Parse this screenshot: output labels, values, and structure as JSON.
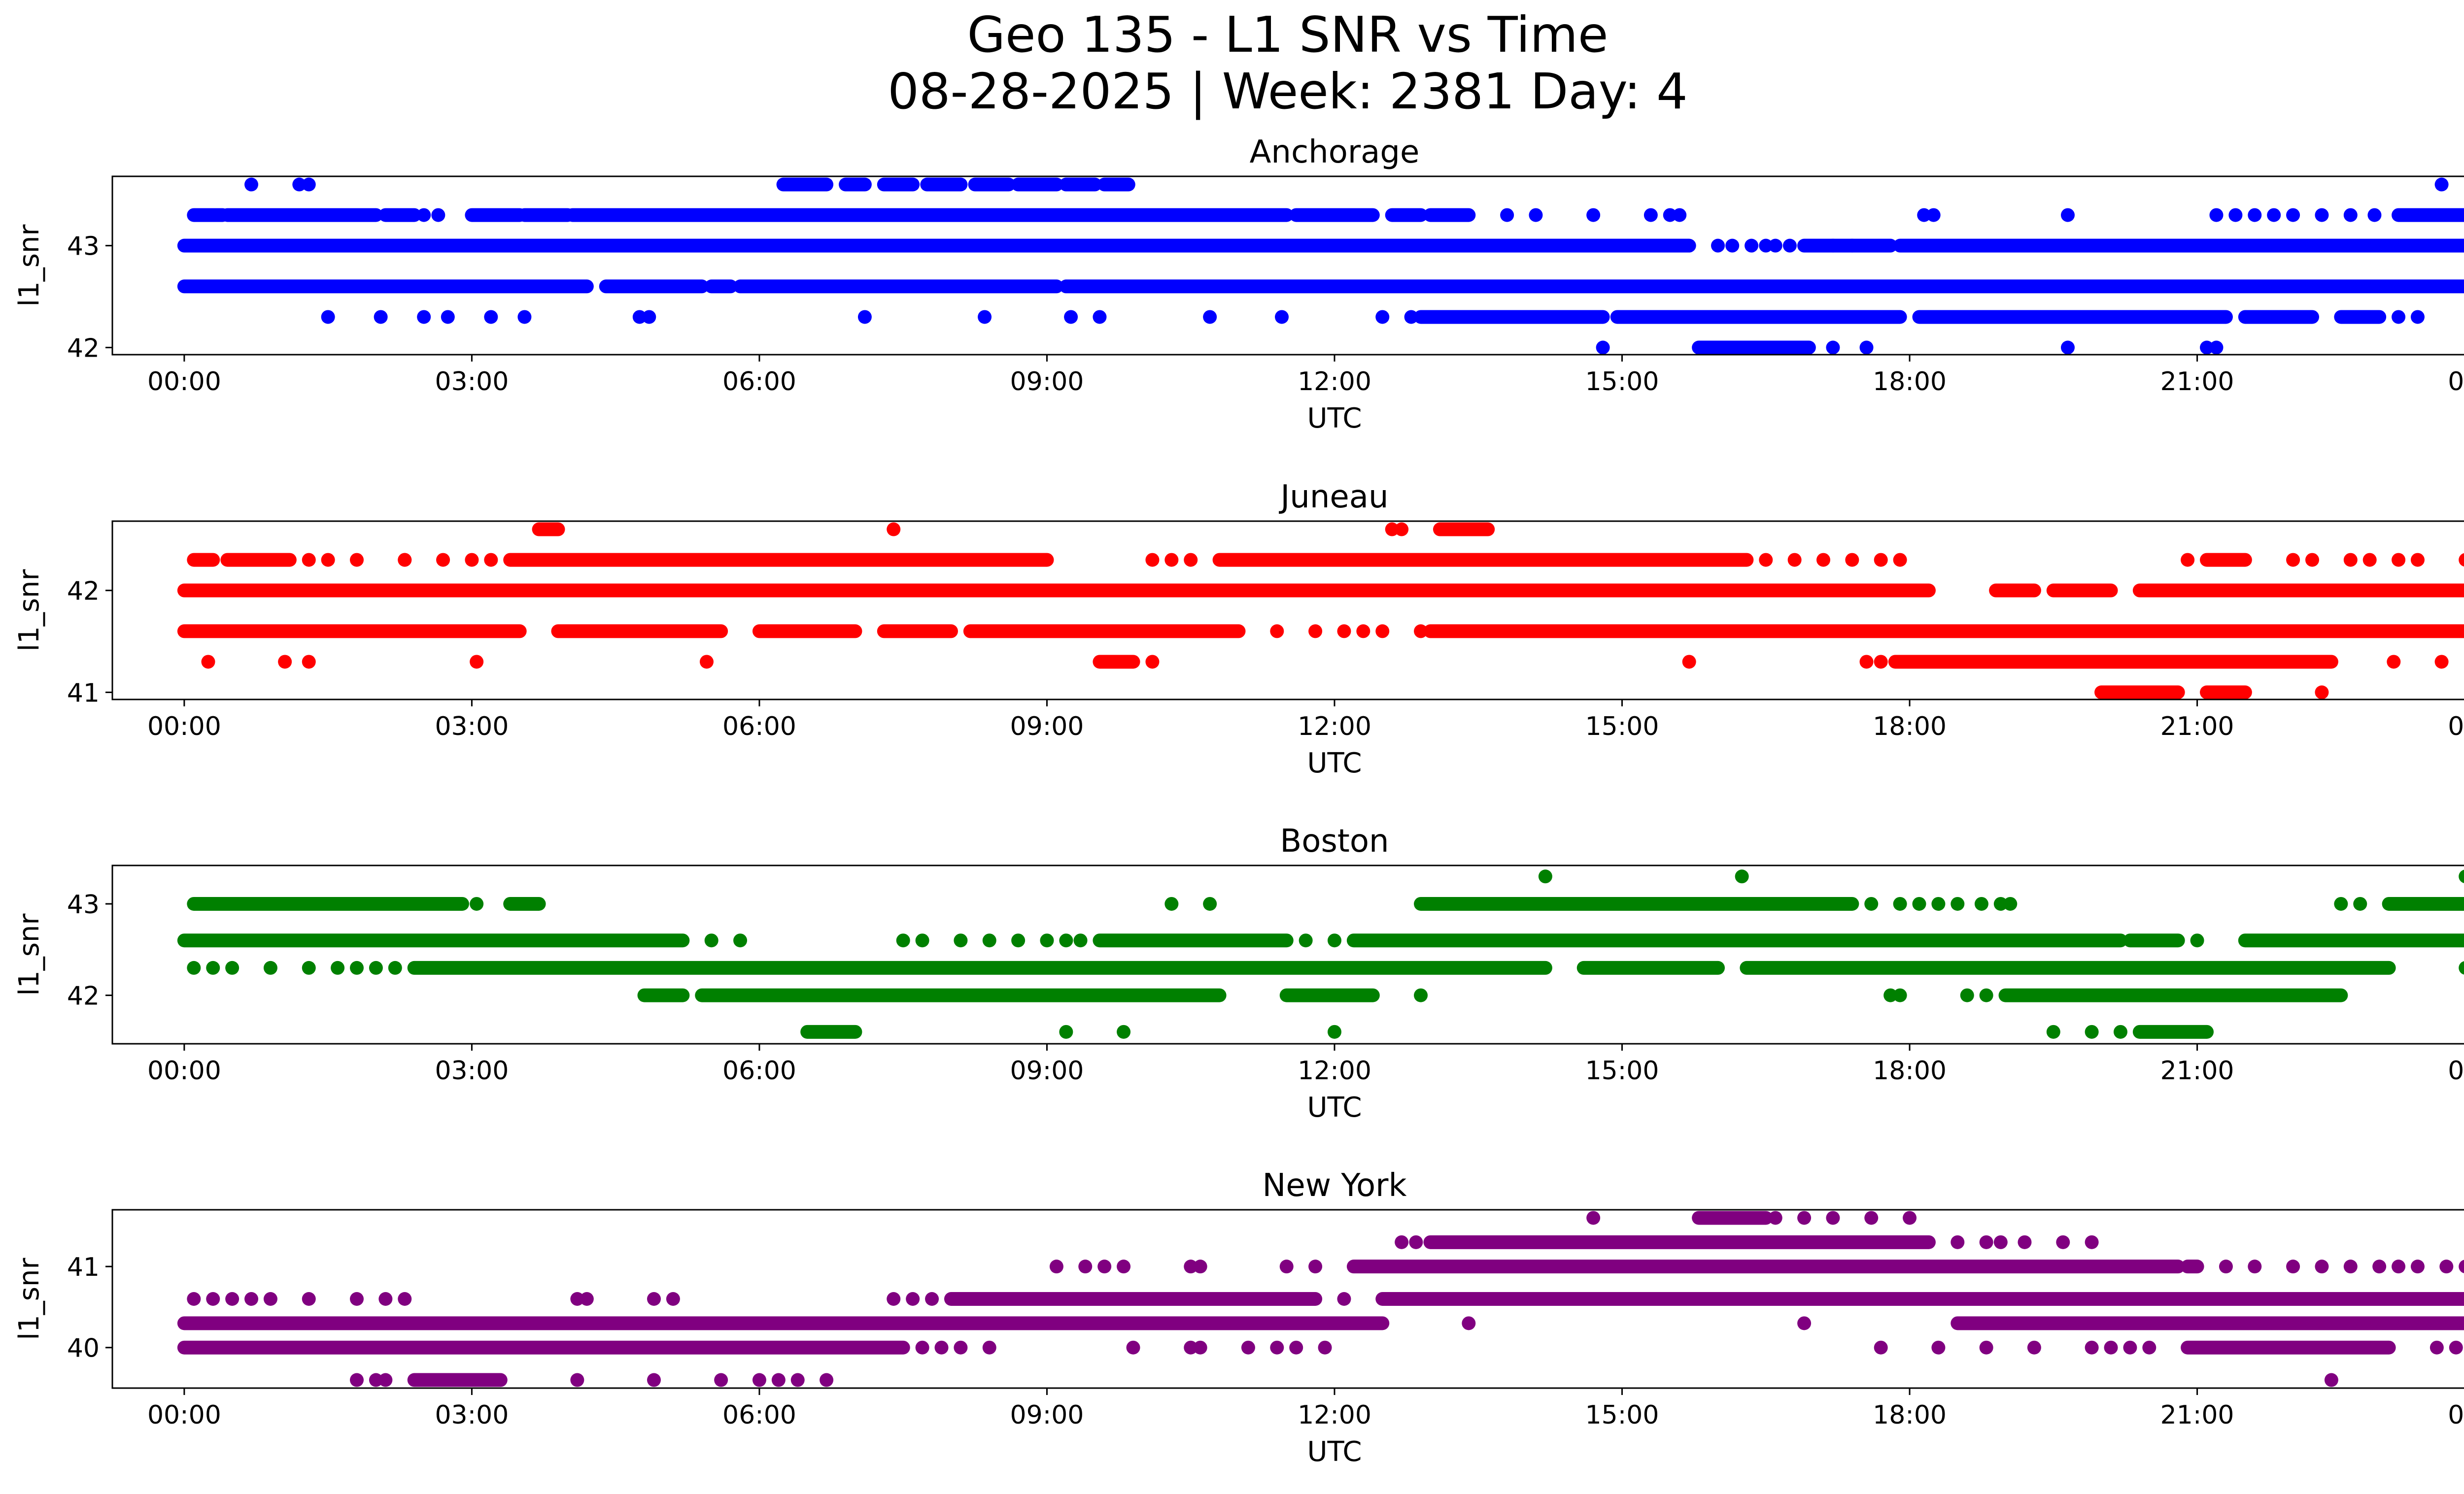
{
  "chart_data": {
    "type": "scatter",
    "title": "Geo 135 - L1 SNR vs Time",
    "subtitle": "08-28-2025 | Week: 2381 Day: 4",
    "panels": [
      {
        "name": "Anchorage",
        "color": "#0000ff",
        "xlabel": "UTC",
        "ylabel": "l1_snr",
        "xlim": [
          -0.75,
          24.75
        ],
        "ylim": [
          41.93,
          43.68
        ],
        "yticks": [
          42,
          43
        ],
        "xticks": [
          0,
          3,
          6,
          9,
          12,
          15,
          18,
          21,
          24
        ],
        "xtick_labels": [
          "00:00",
          "03:00",
          "06:00",
          "09:00",
          "12:00",
          "15:00",
          "18:00",
          "21:00",
          "00:00"
        ],
        "series": [
          {
            "y": 43.6,
            "segments": [
              [
                6.25,
                6.7
              ],
              [
                6.9,
                7.1
              ],
              [
                7.3,
                7.6
              ],
              [
                7.75,
                8.1
              ],
              [
                8.25,
                8.6
              ],
              [
                8.7,
                9.1
              ],
              [
                9.2,
                9.5
              ],
              [
                9.6,
                9.85
              ]
            ],
            "points": [
              0.7,
              1.2,
              1.3,
              23.55
            ]
          },
          {
            "y": 43.3,
            "segments": [
              [
                0.1,
                0.4
              ],
              [
                0.45,
                2.0
              ],
              [
                2.1,
                2.4
              ],
              [
                3.0,
                3.5
              ],
              [
                3.55,
                4.0
              ],
              [
                4.05,
                11.5
              ],
              [
                11.6,
                12.4
              ],
              [
                12.6,
                12.9
              ],
              [
                13.0,
                13.4
              ],
              [
                23.1,
                24.0
              ]
            ],
            "points": [
              2.5,
              2.65,
              13.8,
              14.1,
              14.7,
              15.3,
              15.5,
              15.6,
              18.15,
              18.25,
              19.65,
              21.2,
              21.4,
              21.6,
              21.8,
              22.0,
              22.3,
              22.6,
              22.85
            ]
          },
          {
            "y": 43.0,
            "segments": [
              [
                0.0,
                15.7
              ],
              [
                16.9,
                17.8
              ],
              [
                17.9,
                24.0
              ]
            ],
            "points": [
              16.0,
              16.15,
              16.35,
              16.5,
              16.6,
              16.75,
              17.2,
              17.4
            ]
          },
          {
            "y": 42.6,
            "segments": [
              [
                0.0,
                4.2
              ],
              [
                4.4,
                5.4
              ],
              [
                5.5,
                5.7
              ],
              [
                5.8,
                9.1
              ],
              [
                9.2,
                24.0
              ]
            ],
            "points": []
          },
          {
            "y": 42.3,
            "segments": [
              [
                12.9,
                14.8
              ],
              [
                14.95,
                17.9
              ],
              [
                18.1,
                21.3
              ],
              [
                21.5,
                22.2
              ],
              [
                22.5,
                22.9
              ]
            ],
            "points": [
              1.5,
              2.05,
              2.5,
              2.75,
              3.2,
              3.55,
              4.75,
              4.85,
              7.1,
              8.35,
              9.25,
              9.55,
              10.7,
              11.45,
              12.5,
              12.8,
              23.1,
              23.3
            ]
          },
          {
            "y": 42.0,
            "segments": [
              [
                15.8,
                16.95
              ]
            ],
            "points": [
              14.8,
              17.2,
              17.55,
              19.65,
              21.1,
              21.2
            ]
          }
        ]
      },
      {
        "name": "Juneau",
        "color": "#ff0000",
        "xlabel": "UTC",
        "ylabel": "l1_snr",
        "xlim": [
          -0.75,
          24.75
        ],
        "ylim": [
          40.93,
          42.68
        ],
        "yticks": [
          41,
          42
        ],
        "xticks": [
          0,
          3,
          6,
          9,
          12,
          15,
          18,
          21,
          24
        ],
        "xtick_labels": [
          "00:00",
          "03:00",
          "06:00",
          "09:00",
          "12:00",
          "15:00",
          "18:00",
          "21:00",
          "00:00"
        ],
        "series": [
          {
            "y": 42.6,
            "segments": [
              [
                3.7,
                3.9
              ],
              [
                13.1,
                13.6
              ]
            ],
            "points": [
              7.4,
              12.6,
              12.7
            ]
          },
          {
            "y": 42.3,
            "segments": [
              [
                0.1,
                0.3
              ],
              [
                0.45,
                1.1
              ],
              [
                3.4,
                9.0
              ],
              [
                10.8,
                16.3
              ],
              [
                21.1,
                21.5
              ]
            ],
            "points": [
              1.3,
              1.5,
              1.8,
              2.3,
              2.3,
              2.7,
              3.0,
              3.2,
              10.1,
              10.3,
              10.5,
              16.5,
              16.8,
              17.1,
              17.4,
              17.7,
              17.9,
              20.9,
              22.0,
              22.2,
              22.6,
              22.8,
              23.1,
              23.3,
              23.8,
              24.0
            ]
          },
          {
            "y": 42.0,
            "segments": [
              [
                0.0,
                18.2
              ],
              [
                18.9,
                19.3
              ],
              [
                19.5,
                20.1
              ],
              [
                20.4,
                24.0
              ]
            ],
            "points": []
          },
          {
            "y": 41.6,
            "segments": [
              [
                0.0,
                3.5
              ],
              [
                3.9,
                5.6
              ],
              [
                6.0,
                7.0
              ],
              [
                7.3,
                8.0
              ],
              [
                8.2,
                11.0
              ],
              [
                13.0,
                24.0
              ]
            ],
            "points": [
              11.4,
              11.8,
              12.1,
              12.3,
              12.5,
              12.9
            ]
          },
          {
            "y": 41.3,
            "segments": [
              [
                9.55,
                9.9
              ],
              [
                17.85,
                22.4
              ]
            ],
            "points": [
              0.25,
              1.05,
              1.3,
              3.05,
              5.45,
              10.1,
              15.7,
              17.55,
              17.7,
              23.05,
              23.55
            ]
          },
          {
            "y": 41.0,
            "segments": [
              [
                20.0,
                20.8
              ],
              [
                21.1,
                21.5
              ]
            ],
            "points": [
              22.3
            ]
          }
        ]
      },
      {
        "name": "Boston",
        "color": "#008000",
        "xlabel": "UTC",
        "ylabel": "l1_snr",
        "xlim": [
          -0.75,
          24.75
        ],
        "ylim": [
          41.47,
          43.42
        ],
        "yticks": [
          42,
          43
        ],
        "xticks": [
          0,
          3,
          6,
          9,
          12,
          15,
          18,
          21,
          24
        ],
        "xtick_labels": [
          "00:00",
          "03:00",
          "06:00",
          "09:00",
          "12:00",
          "15:00",
          "18:00",
          "21:00",
          "00:00"
        ],
        "series": [
          {
            "y": 43.3,
            "segments": [],
            "points": [
              14.2,
              16.25,
              23.8,
              23.9
            ]
          },
          {
            "y": 43.0,
            "segments": [
              [
                0.1,
                2.9
              ],
              [
                3.4,
                3.7
              ],
              [
                12.9,
                17.4
              ],
              [
                23.0,
                24.0
              ]
            ],
            "points": [
              3.05,
              10.3,
              10.7,
              17.6,
              17.9,
              18.1,
              18.3,
              18.5,
              18.75,
              18.95,
              19.05,
              22.5,
              22.7
            ]
          },
          {
            "y": 42.6,
            "segments": [
              [
                0.0,
                5.2
              ],
              [
                9.55,
                11.5
              ],
              [
                12.2,
                20.2
              ],
              [
                20.3,
                20.8
              ],
              [
                21.5,
                24.0
              ]
            ],
            "points": [
              5.5,
              5.8,
              7.5,
              7.7,
              8.1,
              8.4,
              8.7,
              9.0,
              9.2,
              9.35,
              11.7,
              12.0,
              21.0
            ]
          },
          {
            "y": 42.3,
            "segments": [
              [
                2.4,
                14.2
              ],
              [
                14.6,
                16.0
              ],
              [
                16.3,
                23.0
              ]
            ],
            "points": [
              0.1,
              0.3,
              0.5,
              0.9,
              1.3,
              1.6,
              1.8,
              2.0,
              2.2,
              23.8
            ]
          },
          {
            "y": 42.0,
            "segments": [
              [
                4.8,
                5.2
              ],
              [
                5.4,
                10.8
              ],
              [
                11.5,
                12.4
              ],
              [
                19.0,
                22.5
              ]
            ],
            "points": [
              12.9,
              17.9,
              17.8,
              18.6,
              18.8
            ]
          },
          {
            "y": 41.6,
            "segments": [
              [
                6.5,
                7.0
              ],
              [
                20.4,
                21.1
              ]
            ],
            "points": [
              9.2,
              9.8,
              12.0,
              19.5,
              19.9,
              20.2
            ]
          }
        ]
      },
      {
        "name": "New York",
        "color": "#800080",
        "xlabel": "UTC",
        "ylabel": "l1_snr",
        "xlim": [
          -0.75,
          24.75
        ],
        "ylim": [
          39.5,
          41.7
        ],
        "yticks": [
          40,
          41
        ],
        "xticks": [
          0,
          3,
          6,
          9,
          12,
          15,
          18,
          21,
          24
        ],
        "xtick_labels": [
          "00:00",
          "03:00",
          "06:00",
          "09:00",
          "12:00",
          "15:00",
          "18:00",
          "21:00",
          "00:00"
        ],
        "series": [
          {
            "y": 41.6,
            "segments": [
              [
                15.8,
                16.5
              ]
            ],
            "points": [
              14.7,
              16.6,
              16.9,
              17.2,
              17.6,
              18.0
            ]
          },
          {
            "y": 41.3,
            "segments": [
              [
                13.0,
                18.2
              ]
            ],
            "points": [
              12.7,
              12.85,
              18.5,
              18.8,
              18.95,
              19.2,
              19.6,
              19.9
            ]
          },
          {
            "y": 41.0,
            "segments": [
              [
                12.2,
                20.8
              ],
              [
                20.9,
                21.0
              ]
            ],
            "points": [
              9.1,
              9.4,
              9.6,
              9.8,
              10.5,
              10.6,
              11.5,
              11.8,
              21.3,
              21.6,
              22.0,
              22.3,
              22.6,
              22.9,
              23.1,
              23.3,
              23.6,
              23.8,
              24.0
            ]
          },
          {
            "y": 40.6,
            "segments": [
              [
                8.0,
                11.8
              ],
              [
                12.5,
                24.0
              ]
            ],
            "points": [
              0.1,
              0.3,
              0.5,
              0.7,
              0.9,
              1.3,
              1.8,
              2.1,
              2.3,
              4.1,
              4.2,
              4.9,
              5.1,
              7.4,
              7.6,
              7.8,
              12.1
            ]
          },
          {
            "y": 40.3,
            "segments": [
              [
                0.0,
                12.5
              ],
              [
                18.5,
                24.0
              ]
            ],
            "points": [
              13.4,
              16.9
            ]
          },
          {
            "y": 40.0,
            "segments": [
              [
                0.0,
                7.5
              ],
              [
                20.9,
                23.0
              ]
            ],
            "points": [
              7.7,
              7.9,
              8.1,
              8.4,
              9.9,
              10.5,
              10.6,
              11.1,
              11.4,
              11.6,
              11.9,
              17.7,
              18.3,
              18.8,
              19.3,
              19.9,
              20.1,
              20.3,
              20.5,
              23.5,
              23.7,
              24.0
            ]
          },
          {
            "y": 39.6,
            "segments": [
              [
                2.4,
                3.3
              ]
            ],
            "points": [
              1.8,
              2.0,
              2.1,
              4.1,
              4.9,
              5.6,
              6.0,
              6.2,
              6.4,
              6.7,
              22.4
            ]
          }
        ]
      }
    ]
  }
}
